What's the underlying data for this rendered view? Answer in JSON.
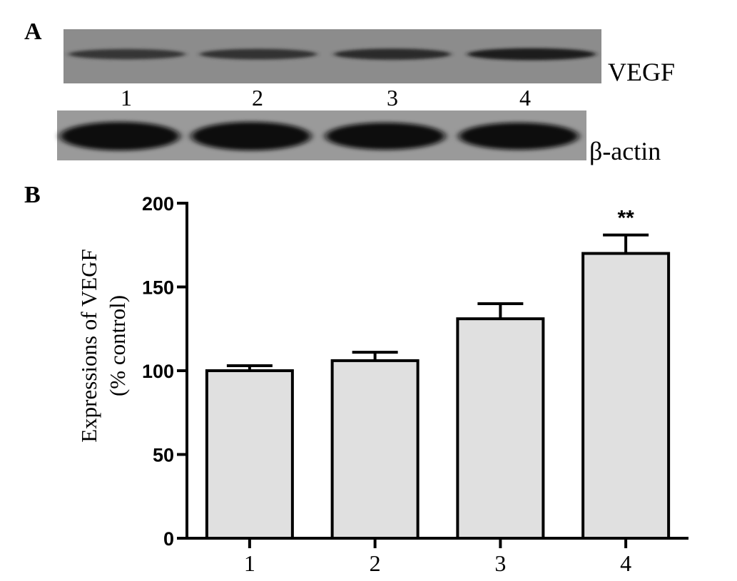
{
  "panel_a": {
    "letter": "A",
    "vegf_label": "VEGF",
    "actin_label": "β-actin",
    "lanes": [
      "1",
      "2",
      "3",
      "4"
    ],
    "vegf_band_intensity": [
      0.55,
      0.6,
      0.7,
      0.85
    ],
    "actin_band_intensity": [
      1.0,
      1.0,
      0.95,
      0.95
    ]
  },
  "panel_b": {
    "letter": "B"
  },
  "chart_data": {
    "type": "bar",
    "categories": [
      "1",
      "2",
      "3",
      "4"
    ],
    "values": [
      100,
      106,
      131,
      170
    ],
    "errors": [
      3,
      5,
      9,
      11
    ],
    "significance": [
      "",
      "",
      "",
      "**"
    ],
    "ylabel_line1": "Expressions of VEGF",
    "ylabel_line2": "(% control)",
    "ylim": [
      0,
      200
    ],
    "yticks": [
      0,
      50,
      100,
      150,
      200
    ],
    "grid": false,
    "bar_color": "#e0e0e0",
    "edge_color": "#000000"
  }
}
